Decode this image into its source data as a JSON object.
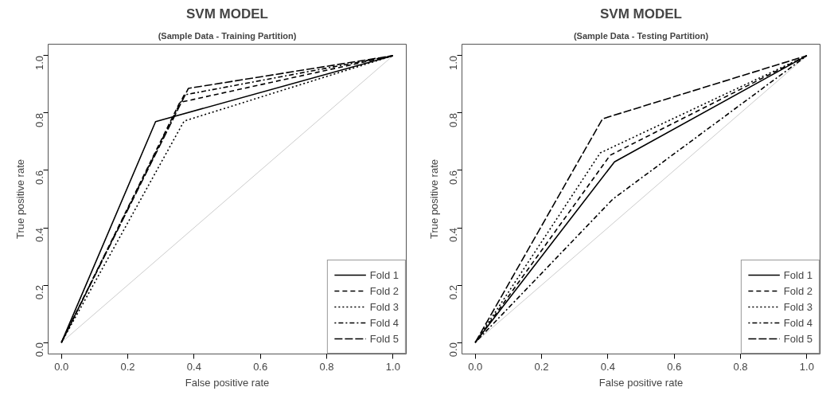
{
  "chart_data": [
    {
      "type": "line",
      "title": "SVM MODEL",
      "subtitle": "(Sample Data - Training Partition)",
      "xlabel": "False positive rate",
      "ylabel": "True positive rate",
      "xlim": [
        -0.04,
        1.04
      ],
      "ylim": [
        -0.04,
        1.04
      ],
      "xticks": [
        {
          "value": 0,
          "label": "0.0"
        },
        {
          "value": 0.2,
          "label": "0.2"
        },
        {
          "value": 0.4,
          "label": "0.4"
        },
        {
          "value": 0.6,
          "label": "0.6"
        },
        {
          "value": 0.8,
          "label": "0.8"
        },
        {
          "value": 1,
          "label": "1.0"
        }
      ],
      "yticks": [
        {
          "value": 0,
          "label": "0.0"
        },
        {
          "value": 0.2,
          "label": "0.2"
        },
        {
          "value": 0.4,
          "label": "0.4"
        },
        {
          "value": 0.6,
          "label": "0.6"
        },
        {
          "value": 0.8,
          "label": "0.8"
        },
        {
          "value": 1,
          "label": "1.0"
        }
      ],
      "grid": false,
      "legend": "bottom right",
      "series": [
        {
          "x": [
            0,
            1
          ],
          "values": [
            0,
            1
          ],
          "color": "#cccccc",
          "line_style": "solid"
        },
        {
          "name": "Fold 1",
          "x": [
            0,
            0.284,
            1
          ],
          "values": [
            0,
            0.77,
            1
          ],
          "color": "#000000",
          "line_style": "solid"
        },
        {
          "name": "Fold 2",
          "x": [
            0,
            0.357,
            1
          ],
          "values": [
            0,
            0.837,
            1
          ],
          "color": "#000000",
          "line_style": "dashed"
        },
        {
          "name": "Fold 3",
          "x": [
            0,
            0.37,
            1
          ],
          "values": [
            0,
            0.772,
            1
          ],
          "color": "#000000",
          "line_style": "dotted"
        },
        {
          "name": "Fold 4",
          "x": [
            0,
            0.37,
            1
          ],
          "values": [
            0,
            0.863,
            1
          ],
          "color": "#000000",
          "line_style": "dashdot"
        },
        {
          "name": "Fold 5",
          "x": [
            0,
            0.383,
            1
          ],
          "values": [
            0,
            0.886,
            1
          ],
          "color": "#000000",
          "line_style": "longdash"
        }
      ]
    },
    {
      "type": "line",
      "title": "SVM MODEL",
      "subtitle": "(Sample Data - Testing Partition)",
      "xlabel": "False positive rate",
      "ylabel": "True positive rate",
      "xlim": [
        -0.04,
        1.04
      ],
      "ylim": [
        -0.04,
        1.04
      ],
      "xticks": [
        {
          "value": 0,
          "label": "0.0"
        },
        {
          "value": 0.2,
          "label": "0.2"
        },
        {
          "value": 0.4,
          "label": "0.4"
        },
        {
          "value": 0.6,
          "label": "0.6"
        },
        {
          "value": 0.8,
          "label": "0.8"
        },
        {
          "value": 1,
          "label": "1.0"
        }
      ],
      "yticks": [
        {
          "value": 0,
          "label": "0.0"
        },
        {
          "value": 0.2,
          "label": "0.2"
        },
        {
          "value": 0.4,
          "label": "0.4"
        },
        {
          "value": 0.6,
          "label": "0.6"
        },
        {
          "value": 0.8,
          "label": "0.8"
        },
        {
          "value": 1,
          "label": "1.0"
        }
      ],
      "grid": false,
      "legend": "bottom right",
      "series": [
        {
          "x": [
            0,
            1
          ],
          "values": [
            0,
            1
          ],
          "color": "#cccccc",
          "line_style": "solid"
        },
        {
          "name": "Fold 1",
          "x": [
            0,
            0.42,
            1
          ],
          "values": [
            0,
            0.63,
            1
          ],
          "color": "#000000",
          "line_style": "solid"
        },
        {
          "name": "Fold 2",
          "x": [
            0,
            0.407,
            1
          ],
          "values": [
            0,
            0.653,
            1
          ],
          "color": "#000000",
          "line_style": "dashed"
        },
        {
          "name": "Fold 3",
          "x": [
            0,
            0.377,
            1
          ],
          "values": [
            0,
            0.661,
            1
          ],
          "color": "#000000",
          "line_style": "dotted"
        },
        {
          "name": "Fold 4",
          "x": [
            0,
            0.415,
            1
          ],
          "values": [
            0,
            0.5,
            1
          ],
          "color": "#000000",
          "line_style": "dashdot"
        },
        {
          "name": "Fold 5",
          "x": [
            0,
            0.384,
            1
          ],
          "values": [
            0,
            0.78,
            1
          ],
          "color": "#000000",
          "line_style": "longdash"
        }
      ]
    }
  ]
}
